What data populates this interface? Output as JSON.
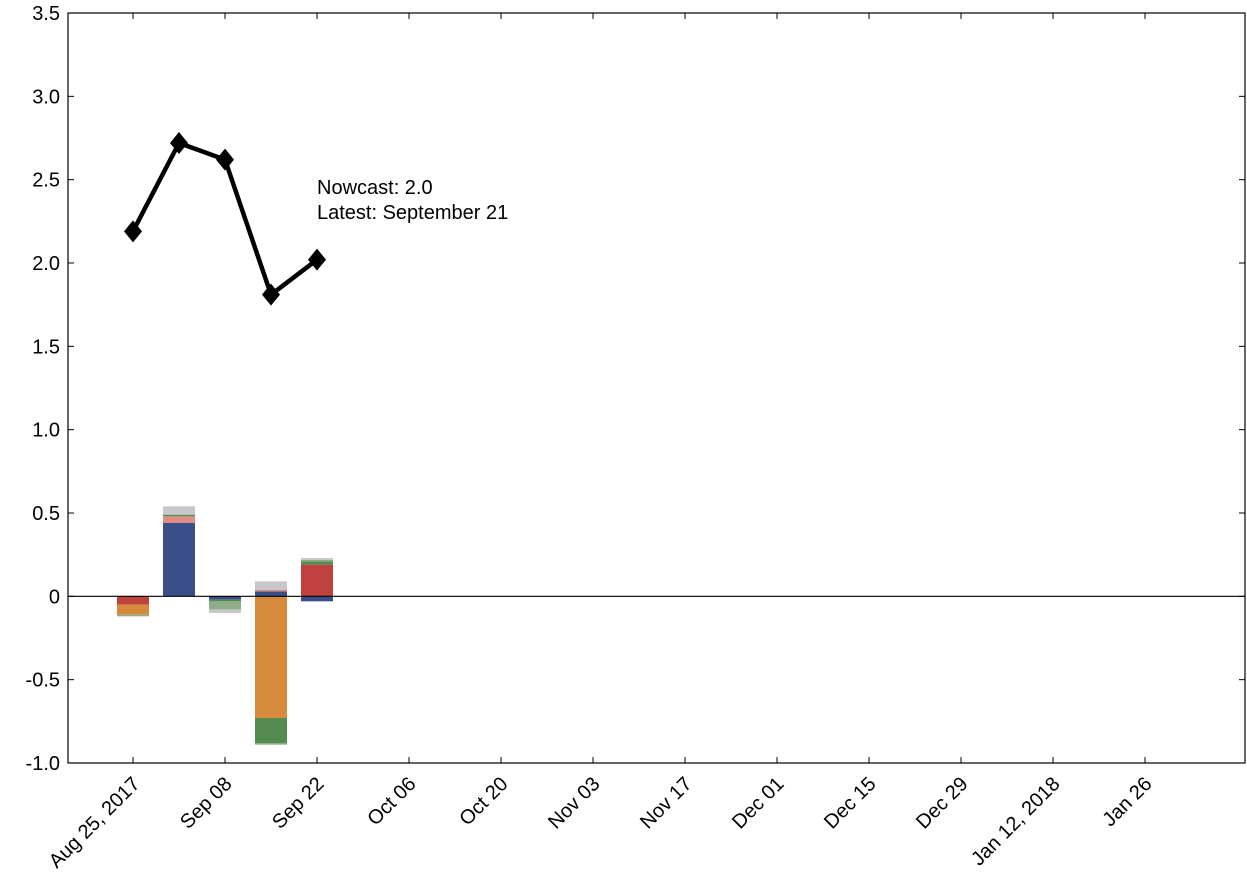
{
  "chart_data": {
    "type": "bar",
    "ylim": [
      -1.0,
      3.5
    ],
    "yticks": [
      -1.0,
      -0.5,
      0,
      0.5,
      1.0,
      1.5,
      2.0,
      2.5,
      3.0,
      3.5
    ],
    "ytick_labels": [
      "-1.0",
      "-0.5",
      "0",
      "0.5",
      "1.0",
      "1.5",
      "2.0",
      "2.5",
      "3.0",
      "3.5"
    ],
    "x": [
      "Aug 25, 2017",
      "Sep 01",
      "Sep 08",
      "Sep 15",
      "Sep 22"
    ],
    "xtick_labels": [
      "Aug 25, 2017",
      "Sep 08",
      "Sep 22",
      "Oct 06",
      "Oct 20",
      "Nov 03",
      "Nov 17",
      "Dec 01",
      "Dec 15",
      "Dec 29",
      "Jan 12, 2018",
      "Jan 26"
    ],
    "bar_series": [
      {
        "color": "#3a4f8a",
        "values": [
          0,
          0.44,
          -0.02,
          0.03,
          -0.03
        ]
      },
      {
        "color": "#c0423f",
        "values": [
          -0.05,
          0,
          0,
          0,
          0.19
        ]
      },
      {
        "color": "#d68b3c",
        "values": [
          -0.06,
          0,
          0,
          -0.73,
          0
        ]
      },
      {
        "color": "#e08c86",
        "values": [
          0,
          0.04,
          0,
          0.01,
          0
        ]
      },
      {
        "color": "#548b4f",
        "values": [
          0,
          0.01,
          -0.01,
          -0.15,
          0.02
        ]
      },
      {
        "color": "#8fad88",
        "values": [
          -0.01,
          0,
          -0.05,
          -0.01,
          0.01
        ]
      },
      {
        "color": "#c8c8cc",
        "values": [
          0,
          0.05,
          -0.02,
          0.05,
          0.01
        ]
      }
    ],
    "line_series": {
      "color": "#000000",
      "marker": "diamond",
      "values": [
        2.19,
        2.72,
        2.62,
        1.81,
        2.02
      ]
    },
    "annotation": {
      "lines": [
        "Nowcast:  2.0",
        "Latest: September 21"
      ]
    },
    "grid": false
  }
}
